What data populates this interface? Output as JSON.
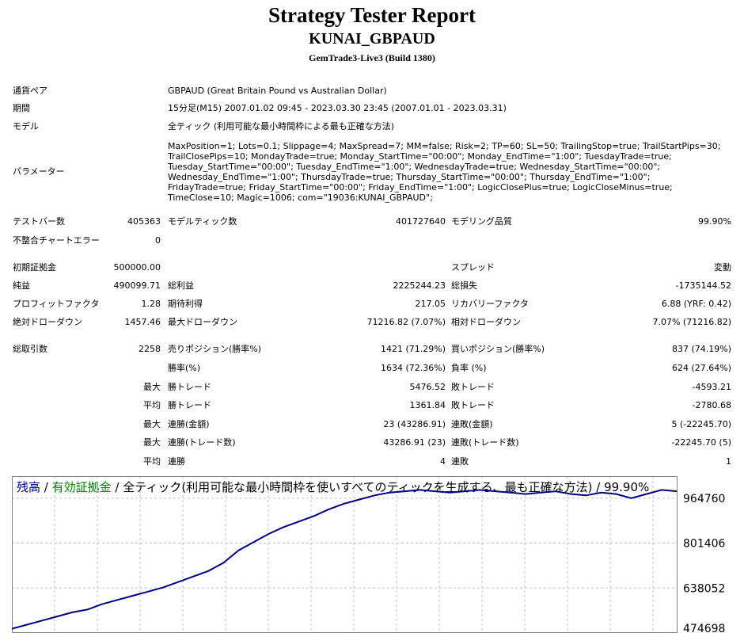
{
  "header": {
    "title": "Strategy Tester Report",
    "subtitle": "KUNAI_GBPAUD",
    "server": "GemTrade3-Live3 (Build 1380)"
  },
  "info": {
    "symbol_label": "通貨ペア",
    "symbol_value": "GBPAUD (Great Britain Pound vs Australian Dollar)",
    "period_label": "期間",
    "period_value": "15分足(M15) 2007.01.02 09:45 - 2023.03.30 23:45 (2007.01.01 - 2023.03.31)",
    "model_label": "モデル",
    "model_value": "全ティック (利用可能な最小時間枠による最も正確な方法)",
    "params_label": "パラメーター",
    "params_value": "MaxPosition=1; Lots=0.1; Slippage=4; MaxSpread=7; MM=false; Risk=2; TP=60; SL=50; TrailingStop=true; TrailStartPips=30; TrailClosePips=10; MondayTrade=true; Monday_StartTime=\"00:00\"; Monday_EndTime=\"1:00\"; TuesdayTrade=true; Tuesday_StartTime=\"00:00\"; Tuesday_EndTime=\"1:00\"; WednesdayTrade=true; Wednesday_StartTime=\"00:00\"; Wednesday_EndTime=\"1:00\"; ThursdayTrade=true; Thursday_StartTime=\"00:00\"; Thursday_EndTime=\"1:00\"; FridayTrade=true; Friday_StartTime=\"00:00\"; Friday_EndTime=\"1:00\"; LogicClosePlus=true; LogicCloseMinus=true; TimeClose=10; Magic=1006; com=\"19036:KUNAI_GBPAUD\";"
  },
  "stats": {
    "bars_label": "テストバー数",
    "bars_value": "405363",
    "ticks_label": "モデルティック数",
    "ticks_value": "401727640",
    "quality_label": "モデリング品質",
    "quality_value": "99.90%",
    "errors_label": "不整合チャートエラー",
    "errors_value": "0",
    "deposit_label": "初期証拠金",
    "deposit_value": "500000.00",
    "spread_label": "スプレッド",
    "spread_value": "変動",
    "net_label": "純益",
    "net_value": "490099.71",
    "gross_profit_label": "総利益",
    "gross_profit_value": "2225244.23",
    "gross_loss_label": "総損失",
    "gross_loss_value": "-1735144.52",
    "pf_label": "プロフィットファクタ",
    "pf_value": "1.28",
    "payoff_label": "期待利得",
    "payoff_value": "217.05",
    "rf_label": "リカバリーファクタ",
    "rf_value": "6.88 (YRF: 0.42)",
    "abs_dd_label": "絶対ドローダウン",
    "abs_dd_value": "1457.46",
    "max_dd_label": "最大ドローダウン",
    "max_dd_value": "71216.82 (7.07%)",
    "rel_dd_label": "相対ドローダウン",
    "rel_dd_value": "7.07% (71216.82)",
    "trades_label": "総取引数",
    "trades_value": "2258",
    "short_label": "売りポジション(勝率%)",
    "short_value": "1421 (71.29%)",
    "long_label": "買いポジション(勝率%)",
    "long_value": "837 (74.19%)",
    "win_label": "勝率(%)",
    "win_value": "1634 (72.36%)",
    "loss_label": "負率 (%)",
    "loss_value": "624 (27.64%)",
    "max_word": "最大",
    "avg_word": "平均",
    "largest_win_label": "勝トレード",
    "largest_win_value": "5476.52",
    "largest_loss_label": "敗トレード",
    "largest_loss_value": "-4593.21",
    "avg_win_label": "勝トレード",
    "avg_win_value": "1361.84",
    "avg_loss_label": "敗トレード",
    "avg_loss_value": "-2780.68",
    "cons_wins_label": "連勝(金額)",
    "cons_wins_value": "23 (43286.91)",
    "cons_losses_label": "連敗(金額)",
    "cons_losses_value": "5 (-22245.70)",
    "cons_profit_label": "連勝(トレード数)",
    "cons_profit_value": "43286.91 (23)",
    "cons_loss_label": "連敗(トレード数)",
    "cons_loss_value": "-22245.70 (5)",
    "avg_cons_wins_label": "連勝",
    "avg_cons_wins_value": "4",
    "avg_cons_losses_label": "連敗",
    "avg_cons_losses_value": "1"
  },
  "chart_data": {
    "type": "line",
    "legend": {
      "balance": "残高",
      "sep1": " / ",
      "equity": "有効証拠金",
      "rest": " / 全ティック(利用可能な最小時間枠を使いすべてのティックを生成する、最も正確な方法) / 99.90%"
    },
    "y_ticks": [
      "964760",
      "801406",
      "638052",
      "474698"
    ],
    "ylim": [
      474698,
      1045000
    ],
    "series": [
      {
        "color": "#000080",
        "values": [
          490000,
          505000,
          520000,
          535000,
          550000,
          560000,
          580000,
          595000,
          610000,
          625000,
          640000,
          660000,
          680000,
          700000,
          730000,
          775000,
          805000,
          835000,
          860000,
          880000,
          900000,
          925000,
          945000,
          960000,
          975000,
          985000,
          990000,
          995000,
          990000,
          985000,
          990000,
          995000,
          990000,
          985000,
          980000,
          985000,
          990000,
          980000,
          975000,
          985000,
          980000,
          965000,
          980000,
          995000,
          990000
        ]
      }
    ],
    "colors": {
      "balance": "#000080",
      "equity": "#008000",
      "grid": "#c0c0c0"
    }
  }
}
